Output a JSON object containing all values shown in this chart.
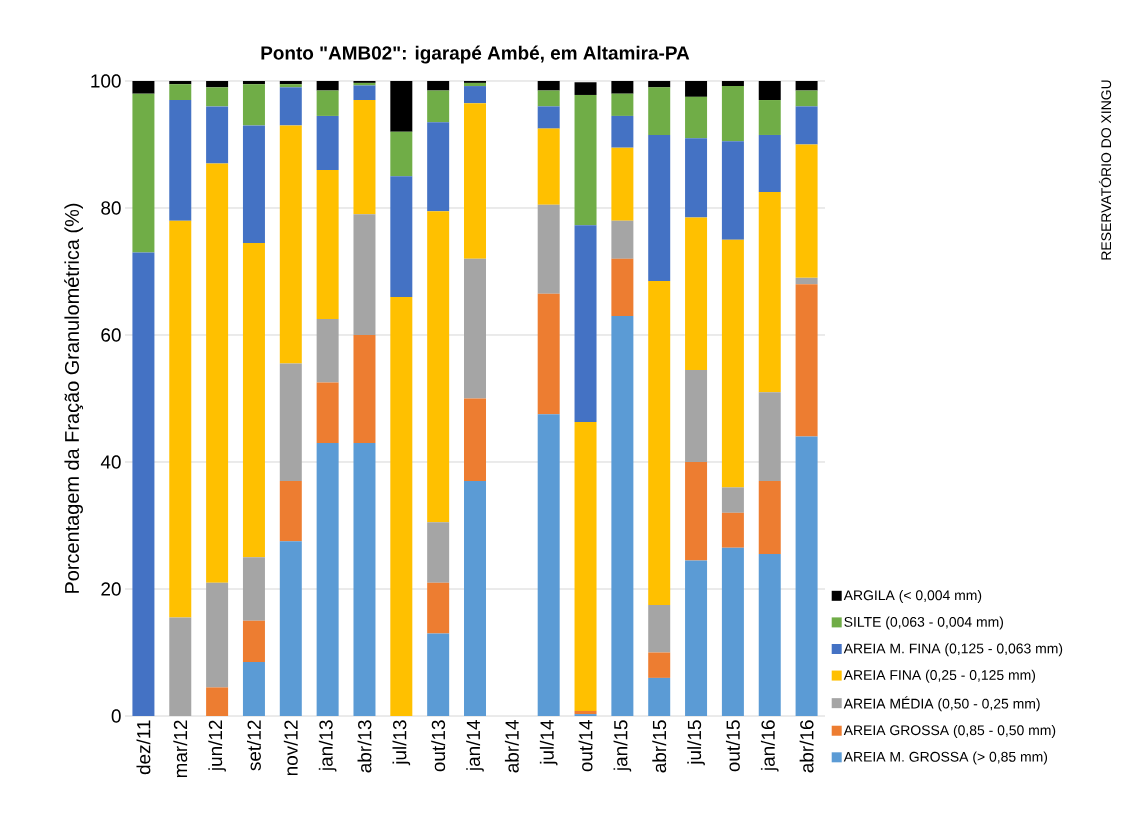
{
  "chart_data": {
    "type": "bar",
    "stacked": true,
    "title": "Ponto  \"AMB02\": igarapé Ambé, em Altamira-PA",
    "ylabel": "Porcentagem da Fração Granulométrica (%)",
    "categories": [
      "dez/11",
      "mar/12",
      "jun/12",
      "set/12",
      "nov/12",
      "jan/13",
      "abr/13",
      "jul/13",
      "out/13",
      "jan/14",
      "abr/14",
      "jul/14",
      "out/14",
      "jan/15",
      "abr/15",
      "jul/15",
      "out/15",
      "jan/16",
      "abr/16"
    ],
    "ylim": [
      0,
      100
    ],
    "yticks": [
      0,
      20,
      40,
      60,
      80,
      100
    ],
    "grid": "y",
    "legend": "bottom right",
    "annotations": [
      "RESERVATÓRIO DO XINGU"
    ],
    "series": [
      {
        "name": "AREIA M. GROSSA (> 0,85 mm)",
        "color": "#5b9bd5",
        "values": [
          0,
          0,
          0,
          8.5,
          27.5,
          43,
          43,
          0,
          13,
          37,
          null,
          47.5,
          0.3,
          63,
          6,
          24.5,
          26.5,
          25.5,
          44
        ]
      },
      {
        "name": "AREIA GROSSA (0,85 - 0,50 mm)",
        "color": "#ed7d31",
        "values": [
          0,
          0,
          4.5,
          6.5,
          9.5,
          9.5,
          17,
          0,
          8,
          13,
          null,
          19,
          0.5,
          9,
          4,
          15.5,
          5.5,
          11.5,
          24
        ]
      },
      {
        "name": "AREIA MÉDIA (0,50 - 0,25 mm)",
        "color": "#a5a5a5",
        "values": [
          0,
          15.5,
          16.5,
          10,
          18.5,
          10,
          19,
          0,
          9.5,
          22,
          null,
          14,
          null,
          6,
          7.5,
          14.5,
          4,
          14,
          1
        ]
      },
      {
        "name": "AREIA FINA (0,25 - 0,125 mm)",
        "color": "#ffc000",
        "values": [
          0,
          62.5,
          66,
          49.5,
          37.5,
          23.5,
          18,
          66,
          49,
          24.5,
          null,
          12,
          45.5,
          11.5,
          51,
          24,
          39,
          31.5,
          21
        ]
      },
      {
        "name": "AREIA M. FINA (0,125 - 0,063 mm)",
        "color": "#4472c4",
        "values": [
          73,
          19,
          9,
          18.5,
          6,
          8.5,
          2.3,
          19,
          14,
          2.7,
          null,
          3.5,
          31,
          5,
          23,
          12.5,
          15.5,
          9,
          6
        ]
      },
      {
        "name": "SILTE (0,063 -  0,004 mm)",
        "color": "#70ad47",
        "values": [
          25,
          2.5,
          3,
          6.5,
          0.5,
          4,
          0.4,
          7,
          5,
          0.5,
          null,
          2.5,
          20.5,
          3.5,
          7.5,
          6.5,
          8.7,
          5.5,
          2.5
        ]
      },
      {
        "name": "ARGILA (< 0,004 mm)",
        "color": "#000000",
        "values": [
          2,
          0.5,
          1,
          0.5,
          0.5,
          1.5,
          0.3,
          8,
          1.5,
          0.3,
          null,
          1.5,
          2,
          2,
          1,
          2.5,
          0.8,
          3,
          1.5
        ]
      }
    ]
  }
}
